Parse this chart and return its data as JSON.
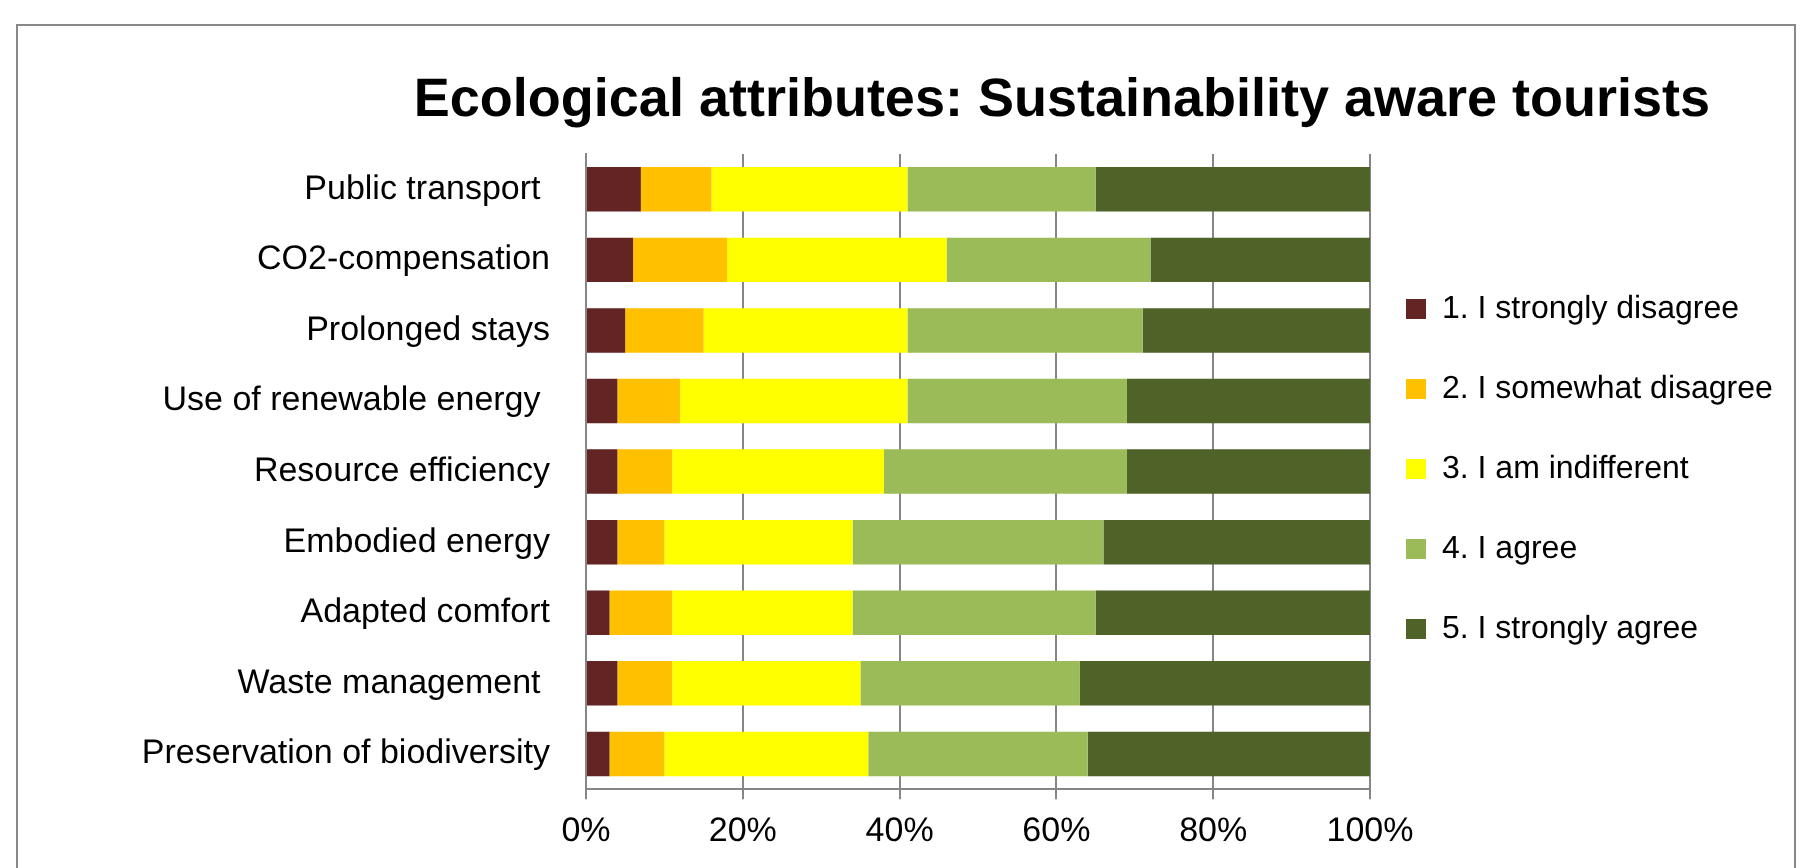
{
  "chart_data": {
    "type": "bar",
    "title": "Ecological attributes: Sustainability aware tourists",
    "orientation": "horizontal",
    "stacked": true,
    "categories": [
      "Public transport ",
      "CO2-compensation",
      "Prolonged stays",
      "Use of renewable energy ",
      "Resource efficiency",
      "Embodied energy",
      "Adapted comfort",
      "Waste management ",
      "Preservation of biodiversity"
    ],
    "series": [
      {
        "name": "1. I strongly disagree",
        "color": "#632523",
        "values": [
          7,
          6,
          5,
          4,
          4,
          4,
          3,
          4,
          3
        ]
      },
      {
        "name": "2. I somewhat disagree",
        "color": "#ffc000",
        "values": [
          9,
          12,
          10,
          8,
          7,
          6,
          8,
          7,
          7
        ]
      },
      {
        "name": "3. I am indifferent",
        "color": "#ffff00",
        "values": [
          25,
          28,
          26,
          29,
          27,
          24,
          23,
          24,
          26
        ]
      },
      {
        "name": "4. I agree",
        "color": "#9bbb59",
        "values": [
          24,
          26,
          30,
          28,
          31,
          32,
          31,
          28,
          28
        ]
      },
      {
        "name": "5. I strongly agree",
        "color": "#4f6228",
        "values": [
          35,
          28,
          29,
          31,
          31,
          34,
          35,
          37,
          36
        ]
      }
    ],
    "xlim": [
      0,
      100
    ],
    "xticks": [
      {
        "value": 0,
        "label": "0%"
      },
      {
        "value": 20,
        "label": "20%"
      },
      {
        "value": 40,
        "label": "40%"
      },
      {
        "value": 60,
        "label": "60%"
      },
      {
        "value": 80,
        "label": "80%"
      },
      {
        "value": 100,
        "label": "100%"
      }
    ],
    "grid": "x",
    "legend": "right"
  }
}
